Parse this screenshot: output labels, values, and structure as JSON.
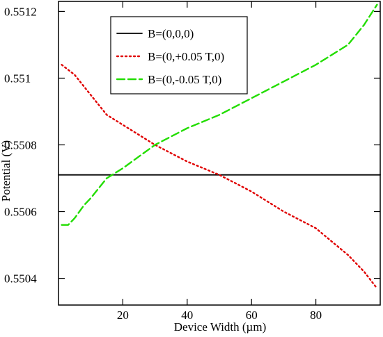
{
  "chart_data": {
    "type": "line",
    "title": "",
    "xlabel": "Device Width (µm)",
    "ylabel": "Potential (V)",
    "xlim": [
      0,
      100
    ],
    "ylim": [
      0.55032,
      0.55123
    ],
    "x_ticks": [
      20,
      40,
      60,
      80
    ],
    "x_tick_labels": [
      "20",
      "40",
      "60",
      "80"
    ],
    "y_ticks": [
      0.5504,
      0.5506,
      0.5508,
      0.551,
      0.5512
    ],
    "y_tick_labels": [
      "0.5504",
      "0.5506",
      "0.5508",
      "0.551",
      "0.5512"
    ],
    "grid": false,
    "legend_position": "top-left",
    "series": [
      {
        "name": "B=(0,0,0)",
        "color": "#000000",
        "style": "solid",
        "x": [
          0,
          20,
          40,
          60,
          80,
          100
        ],
        "y": [
          0.55071,
          0.55071,
          0.55071,
          0.55071,
          0.55071,
          0.55071
        ]
      },
      {
        "name": "B=(0,+0.05 T,0)",
        "color": "#e00000",
        "style": "dotted",
        "x": [
          1,
          5,
          10,
          15,
          20,
          30,
          40,
          50,
          60,
          70,
          80,
          85,
          90,
          95,
          99
        ],
        "y": [
          0.55104,
          0.55101,
          0.55095,
          0.55089,
          0.55086,
          0.5508,
          0.55075,
          0.55071,
          0.55066,
          0.5506,
          0.55055,
          0.55051,
          0.55047,
          0.55042,
          0.55037
        ]
      },
      {
        "name": "B=(0,-0.05 T,0)",
        "color": "#22dd00",
        "style": "dashed",
        "x": [
          1,
          3,
          5,
          8,
          10,
          15,
          20,
          30,
          40,
          50,
          60,
          70,
          80,
          90,
          95,
          99
        ],
        "y": [
          0.55056,
          0.55056,
          0.55058,
          0.55062,
          0.55064,
          0.5507,
          0.55073,
          0.5508,
          0.55085,
          0.55089,
          0.55094,
          0.55099,
          0.55104,
          0.5511,
          0.55116,
          0.55122
        ]
      }
    ]
  }
}
